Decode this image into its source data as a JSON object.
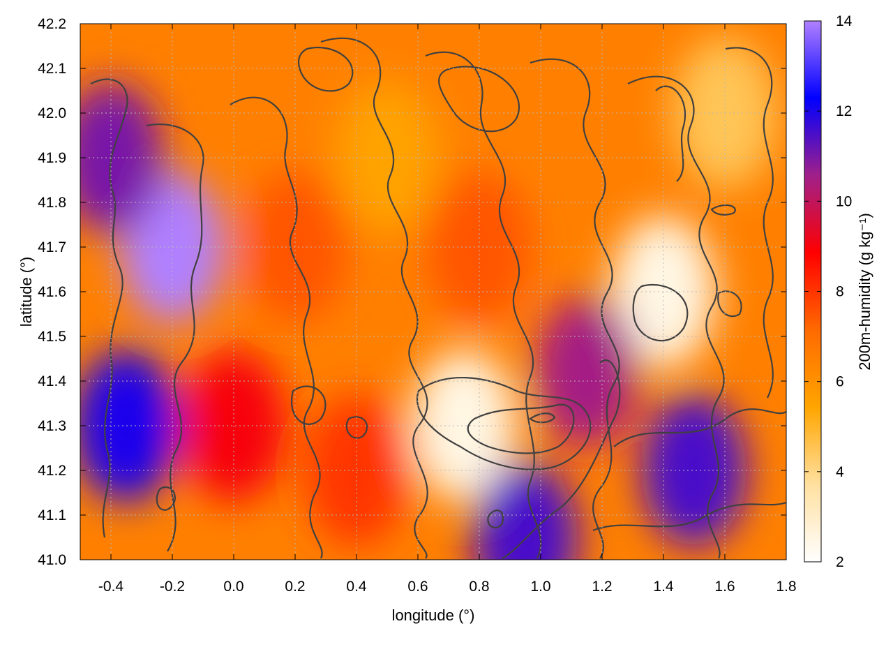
{
  "chart_data": {
    "type": "heatmap",
    "xlabel": "longitude (°)",
    "ylabel": "latitude (°)",
    "colorbar_label": "200m-humidity (g kg⁻¹)",
    "xlim": [
      -0.5,
      1.8
    ],
    "ylim": [
      41.0,
      42.2
    ],
    "clim": [
      2,
      14
    ],
    "x_ticks": [
      "-0.4",
      "-0.2",
      "0.0",
      "0.2",
      "0.4",
      "0.6",
      "0.8",
      "1.0",
      "1.2",
      "1.4",
      "1.6",
      "1.8"
    ],
    "y_ticks": [
      "41.0",
      "41.1",
      "41.2",
      "41.3",
      "41.4",
      "41.5",
      "41.6",
      "41.7",
      "41.8",
      "41.9",
      "42.0",
      "42.1",
      "42.2"
    ],
    "colorbar_ticks": [
      "2",
      "4",
      "6",
      "8",
      "10",
      "12",
      "14"
    ],
    "grid": true,
    "colormap": [
      "#ffffff",
      "#ffe0a0",
      "#ffa500",
      "#ff6a00",
      "#ff0000",
      "#a0208a",
      "#0000ff",
      "#b080ff"
    ],
    "contour_color": "#404040",
    "humidity_regions": [
      {
        "lon": -0.2,
        "lat": 41.7,
        "value": 14
      },
      {
        "lon": -0.35,
        "lat": 41.3,
        "value": 12
      },
      {
        "lon": -0.4,
        "lat": 41.9,
        "value": 11
      },
      {
        "lon": 0.0,
        "lat": 41.3,
        "value": 9
      },
      {
        "lon": 0.2,
        "lat": 41.7,
        "value": 7.5
      },
      {
        "lon": 0.4,
        "lat": 41.2,
        "value": 8
      },
      {
        "lon": 0.5,
        "lat": 41.9,
        "value": 5.5
      },
      {
        "lon": 0.8,
        "lat": 41.7,
        "value": 7.5
      },
      {
        "lon": 0.75,
        "lat": 41.3,
        "value": 2.5
      },
      {
        "lon": 1.4,
        "lat": 41.6,
        "value": 2.5
      },
      {
        "lon": 1.5,
        "lat": 41.2,
        "value": 11.5
      },
      {
        "lon": 0.95,
        "lat": 41.05,
        "value": 11.5
      },
      {
        "lon": 1.6,
        "lat": 42.0,
        "value": 4.5
      },
      {
        "lon": 0.9,
        "lat": 42.05,
        "value": 6.5
      },
      {
        "lon": 1.15,
        "lat": 41.42,
        "value": 10.5
      }
    ]
  }
}
